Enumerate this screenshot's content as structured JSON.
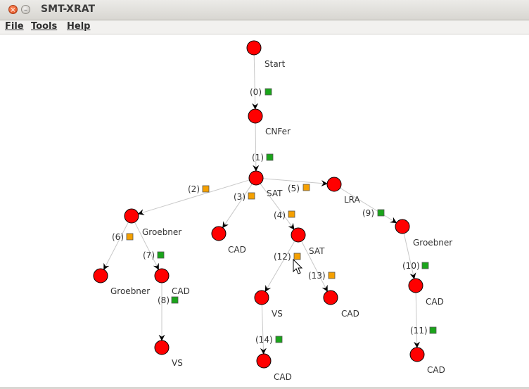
{
  "window": {
    "title": "SMT-XRAT"
  },
  "menu": {
    "file": "File",
    "tools": "Tools",
    "help": "Help"
  },
  "graph": {
    "nodes": [
      {
        "id": "n_start",
        "label": "Start"
      },
      {
        "id": "n_cnfer",
        "label": "CNFer"
      },
      {
        "id": "n_sat1",
        "label": "SAT"
      },
      {
        "id": "n_lra",
        "label": "LRA"
      },
      {
        "id": "n_groeb1",
        "label": "Groebner"
      },
      {
        "id": "n_cad1",
        "label": "CAD"
      },
      {
        "id": "n_sat2",
        "label": "SAT"
      },
      {
        "id": "n_groeb2",
        "label": "Groebner"
      },
      {
        "id": "n_cad2",
        "label": "CAD"
      },
      {
        "id": "n_vs1",
        "label": "VS"
      },
      {
        "id": "n_cad3",
        "label": "CAD"
      },
      {
        "id": "n_groeb3",
        "label": "Groebner"
      },
      {
        "id": "n_cad4",
        "label": "CAD"
      },
      {
        "id": "n_vs2",
        "label": "VS"
      },
      {
        "id": "n_cad5",
        "label": "CAD"
      },
      {
        "id": "n_cad6",
        "label": "CAD"
      }
    ],
    "edges": [
      {
        "label": "(0)",
        "status": "green"
      },
      {
        "label": "(1)",
        "status": "green"
      },
      {
        "label": "(2)",
        "status": "orange"
      },
      {
        "label": "(3)",
        "status": "orange"
      },
      {
        "label": "(4)",
        "status": "orange"
      },
      {
        "label": "(5)",
        "status": "orange"
      },
      {
        "label": "(6)",
        "status": "orange"
      },
      {
        "label": "(7)",
        "status": "green"
      },
      {
        "label": "(8)",
        "status": "green"
      },
      {
        "label": "(9)",
        "status": "green"
      },
      {
        "label": "(10)",
        "status": "green"
      },
      {
        "label": "(11)",
        "status": "green"
      },
      {
        "label": "(12)",
        "status": "orange"
      },
      {
        "label": "(13)",
        "status": "orange"
      },
      {
        "label": "(14)",
        "status": "green"
      }
    ]
  },
  "colors": {
    "node": "#ff0000",
    "green": "#1aa51a",
    "orange": "#f5a000",
    "edge": "#c8c8c8"
  }
}
